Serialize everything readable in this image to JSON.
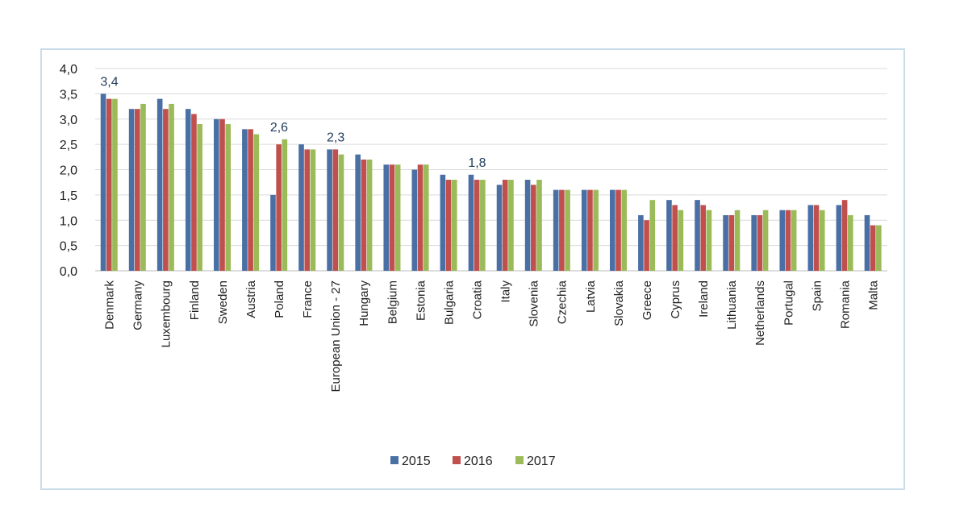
{
  "chart_data": {
    "type": "bar",
    "categories": [
      "Denmark",
      "Germany",
      "Luxembourg",
      "Finland",
      "Sweden",
      "Austria",
      "Poland",
      "France",
      "European Union - 27",
      "Hungary",
      "Belgium",
      "Estonia",
      "Bulgaria",
      "Croatia",
      "Italy",
      "Slovenia",
      "Czechia",
      "Latvia",
      "Slovakia",
      "Greece",
      "Cyprus",
      "Ireland",
      "Lithuania",
      "Netherlands",
      "Portugal",
      "Spain",
      "Romania",
      "Malta"
    ],
    "series": [
      {
        "name": "2015",
        "color": "#4a6fa5",
        "values": [
          3.5,
          3.2,
          3.4,
          3.2,
          3.0,
          2.8,
          1.5,
          2.5,
          2.4,
          2.3,
          2.1,
          2.0,
          1.9,
          1.9,
          1.7,
          1.8,
          1.6,
          1.6,
          1.6,
          1.1,
          1.4,
          1.4,
          1.1,
          1.1,
          1.2,
          1.3,
          1.3,
          1.1
        ]
      },
      {
        "name": "2016",
        "color": "#c0504d",
        "values": [
          3.4,
          3.2,
          3.2,
          3.1,
          3.0,
          2.8,
          2.5,
          2.4,
          2.4,
          2.2,
          2.1,
          2.1,
          1.8,
          1.8,
          1.8,
          1.7,
          1.6,
          1.6,
          1.6,
          1.0,
          1.3,
          1.3,
          1.1,
          1.1,
          1.2,
          1.3,
          1.4,
          0.9
        ]
      },
      {
        "name": "2017",
        "color": "#9bbb59",
        "values": [
          3.4,
          3.3,
          3.3,
          2.9,
          2.9,
          2.7,
          2.6,
          2.4,
          2.3,
          2.2,
          2.1,
          2.1,
          1.8,
          1.8,
          1.8,
          1.8,
          1.6,
          1.6,
          1.6,
          1.4,
          1.2,
          1.2,
          1.2,
          1.2,
          1.2,
          1.2,
          1.1,
          0.9
        ]
      }
    ],
    "ylim": [
      0,
      4.0
    ],
    "yticks": [
      "0,0",
      "0,5",
      "1,0",
      "1,5",
      "2,0",
      "2,5",
      "3,0",
      "3,5",
      "4,0"
    ],
    "grid": true,
    "legend": "bottom",
    "annotations": [
      {
        "category": "Denmark",
        "text": "3,4",
        "value": 3.4
      },
      {
        "category": "Poland",
        "text": "2,6",
        "value": 2.6
      },
      {
        "category": "European Union - 27",
        "text": "2,3",
        "value": 2.3
      },
      {
        "category": "Croatia",
        "text": "1,8",
        "value": 1.8
      }
    ],
    "title": "",
    "xlabel": "",
    "ylabel": ""
  }
}
